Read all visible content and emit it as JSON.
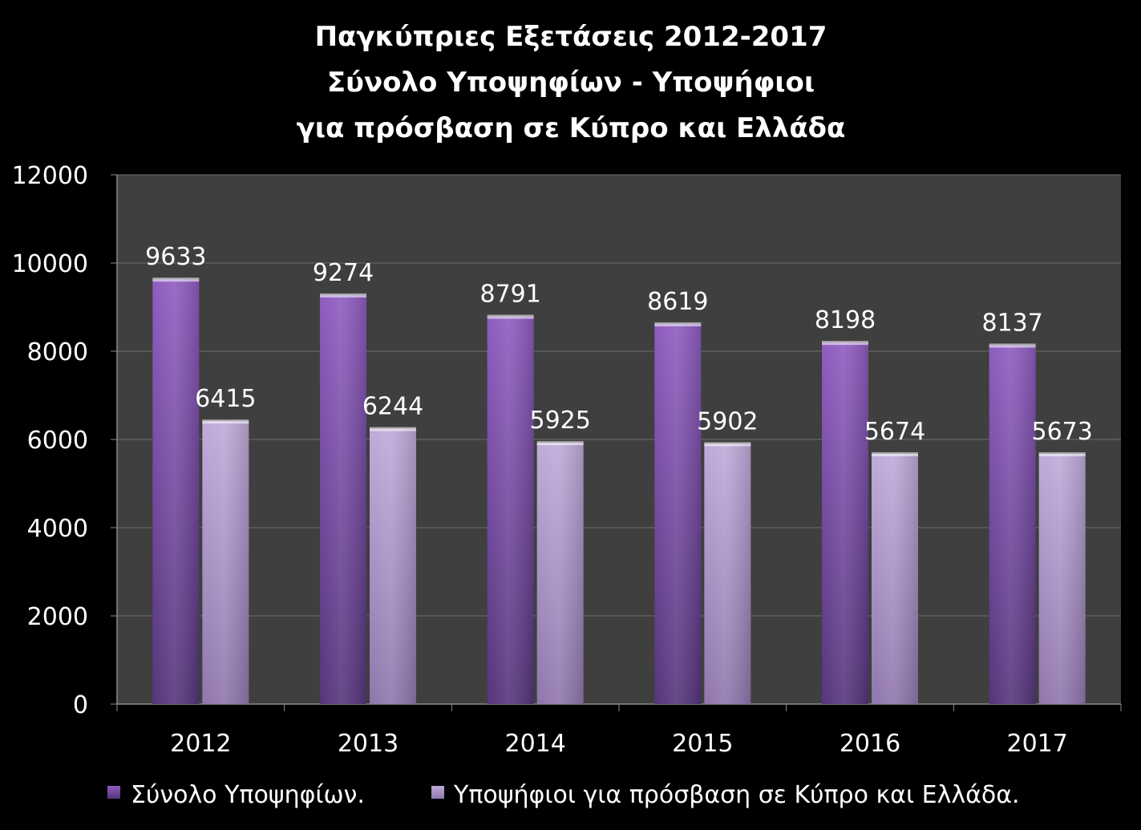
{
  "colors": {
    "background": "#000000",
    "plot_area": "#3f3f3f",
    "gridline": "#6e6e6e",
    "axis": "#8c8c8c",
    "text": "#ffffff",
    "series_1_light": "#8e5cc0",
    "series_1_dark": "#55357a",
    "series_2_light": "#bfaad9",
    "series_2_dark": "#8f76ac"
  },
  "chart_data": {
    "type": "bar",
    "title": [
      "Παγκύπριες Εξετάσεις 2012-2017",
      "Σύνολο Υποψηφίων - Υποψήφιοι",
      "για πρόσβαση σε Κύπρο και Ελλάδα"
    ],
    "categories": [
      "2012",
      "2013",
      "2014",
      "2015",
      "2016",
      "2017"
    ],
    "series": [
      {
        "name": "Σύνολο Υποψηφίων.",
        "values": [
          9633,
          9274,
          8791,
          8619,
          8198,
          8137
        ]
      },
      {
        "name": "Υποψήφιοι για πρόσβαση σε Κύπρο και Ελλάδα.",
        "values": [
          6415,
          6244,
          5925,
          5902,
          5674,
          5673
        ]
      }
    ],
    "y_ticks": [
      "0",
      "2000",
      "4000",
      "6000",
      "8000",
      "10000",
      "12000"
    ],
    "ylim": [
      0,
      12000
    ],
    "grid": true,
    "data_labels": true,
    "legend_position": "bottom"
  }
}
